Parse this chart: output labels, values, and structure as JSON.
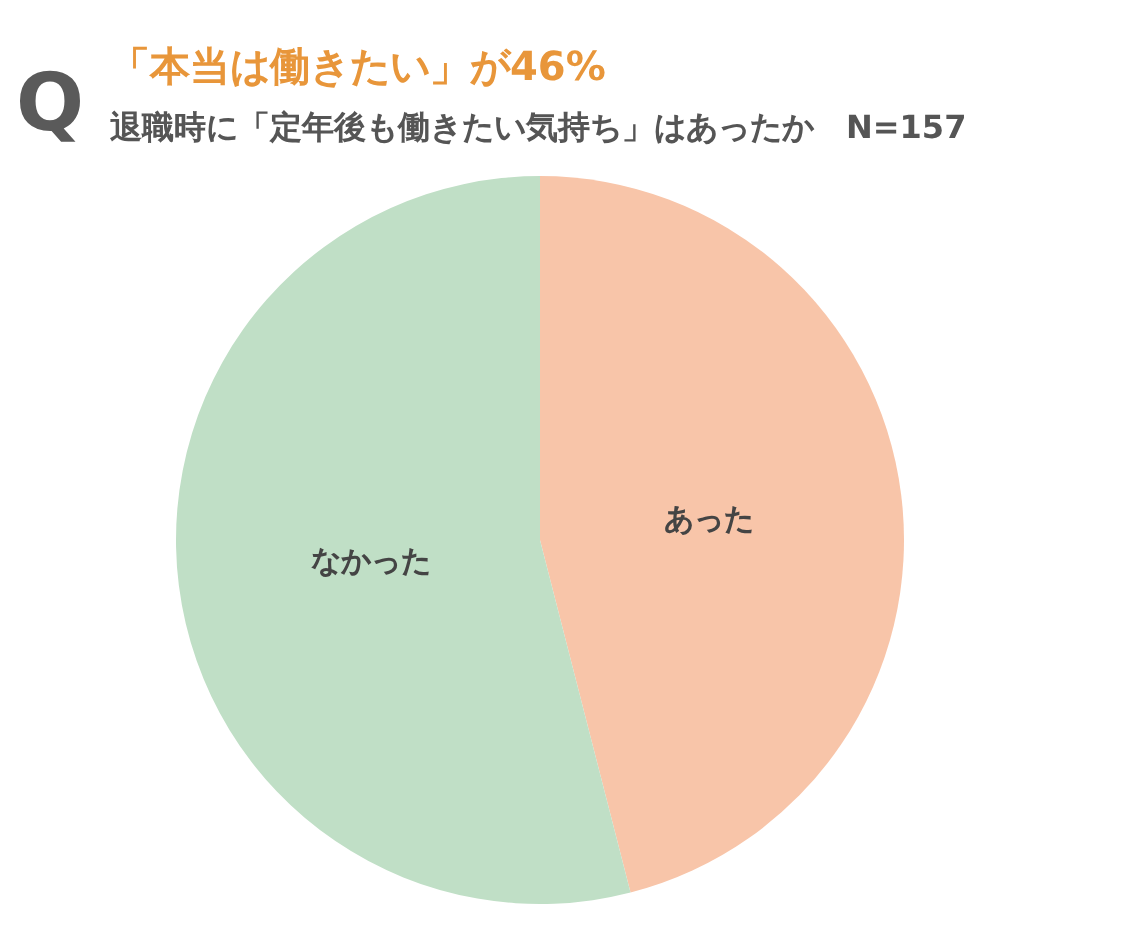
{
  "chart_data": {
    "type": "pie",
    "title": "「本当は働きたい」が46%",
    "subtitle": "退職時に「定年後も働きたい気持ち」はあったか　N=157",
    "annotations": [
      "Q"
    ],
    "categories": [
      "あった",
      "なかった"
    ],
    "values": [
      46,
      54
    ],
    "colors": [
      "#f8c5a9",
      "#c0dfc6"
    ],
    "legend": false
  }
}
